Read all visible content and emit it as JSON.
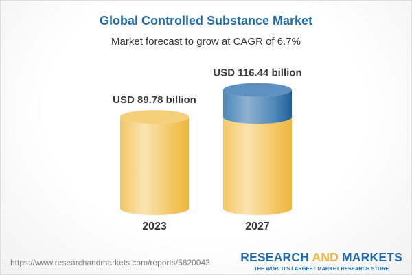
{
  "title": "Global Controlled Substance Market",
  "subtitle": "Market forecast to grow at CAGR of 6.7%",
  "chart_data": {
    "type": "bar",
    "style": "3d-cylinder",
    "categories": [
      "2023",
      "2027"
    ],
    "values": [
      89.78,
      116.44
    ],
    "data_labels": [
      "USD 89.78 billion",
      "USD 116.44 billion"
    ],
    "unit": "USD billion",
    "colors": {
      "base": "#f2c45a",
      "growth": "#3f7fb3"
    }
  },
  "footer": {
    "url": "https://www.researchandmarkets.com/reports/5820043",
    "logo_part1": "RESEARCH ",
    "logo_part2": "AND",
    "logo_part3": " MARKETS",
    "logo_tagline": "THE WORLD'S LARGEST MARKET RESEARCH STORE"
  }
}
